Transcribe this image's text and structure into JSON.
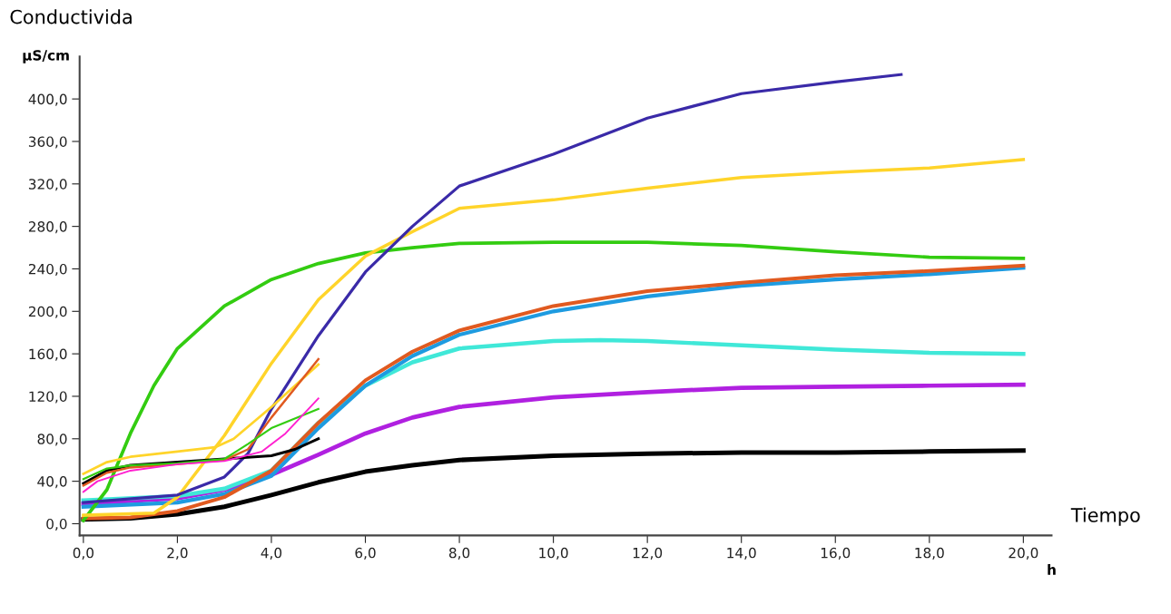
{
  "chart_data": {
    "type": "line",
    "title": "Conductivida",
    "xlabel": "Tiempo",
    "annotations": [
      "µS/cm",
      "h"
    ],
    "xlim": [
      -0.08,
      20.6
    ],
    "ylim": [
      -11,
      440
    ],
    "xticks": [
      {
        "value": 0,
        "label": "0,0"
      },
      {
        "value": 2,
        "label": "2,0"
      },
      {
        "value": 4,
        "label": "4,0"
      },
      {
        "value": 6,
        "label": "6,0"
      },
      {
        "value": 8,
        "label": "8,0"
      },
      {
        "value": 10,
        "label": "10,0"
      },
      {
        "value": 12,
        "label": "12,0"
      },
      {
        "value": 14,
        "label": "14,0"
      },
      {
        "value": 16,
        "label": "16,0"
      },
      {
        "value": 18,
        "label": "18,0"
      },
      {
        "value": 20,
        "label": "20,0"
      }
    ],
    "yticks": [
      {
        "value": 0,
        "label": "0,0"
      },
      {
        "value": 40,
        "label": "40,0"
      },
      {
        "value": 80,
        "label": "80,0"
      },
      {
        "value": 120,
        "label": "120,0"
      },
      {
        "value": 160,
        "label": "160,0"
      },
      {
        "value": 200,
        "label": "200,0"
      },
      {
        "value": 240,
        "label": "240,0"
      },
      {
        "value": 280,
        "label": "280,0"
      },
      {
        "value": 320,
        "label": "320,0"
      },
      {
        "value": 360,
        "label": "360,0"
      },
      {
        "value": 400,
        "label": "400,0"
      }
    ],
    "grid": false,
    "legend": false,
    "marker": "none",
    "line_style": "solid",
    "series": [
      {
        "color": "#000000",
        "x": [
          0,
          1,
          2,
          3,
          4,
          5,
          6,
          7,
          8,
          10,
          12,
          14,
          16,
          18,
          20
        ],
        "values": [
          4,
          5,
          9,
          16,
          27,
          39,
          49,
          55,
          60,
          64,
          66,
          67,
          67,
          68,
          69
        ]
      },
      {
        "color": "#b020e0",
        "x": [
          0,
          2,
          3,
          4,
          5,
          6,
          7,
          8,
          10,
          12,
          14,
          16,
          18,
          20
        ],
        "values": [
          19,
          24,
          32,
          46,
          65,
          85,
          100,
          110,
          119,
          124,
          128,
          129,
          130,
          131
        ]
      },
      {
        "color": "#40e8d8",
        "x": [
          0,
          2,
          3,
          4,
          5,
          6,
          7,
          8,
          10,
          11,
          12,
          14,
          16,
          18,
          20
        ],
        "values": [
          22,
          26,
          33,
          50,
          95,
          130,
          152,
          165,
          172,
          173,
          172,
          168,
          164,
          161,
          160
        ]
      },
      {
        "color": "#1e9be0",
        "x": [
          0,
          2,
          3,
          4,
          5,
          6,
          7,
          8,
          10,
          12,
          14,
          16,
          18,
          20
        ],
        "values": [
          16,
          20,
          28,
          45,
          90,
          130,
          158,
          178,
          200,
          214,
          224,
          230,
          235,
          241
        ]
      },
      {
        "color": "#e05a20",
        "x": [
          0,
          1,
          2,
          3,
          4,
          5,
          6,
          7,
          8,
          10,
          12,
          14,
          16,
          18,
          20
        ],
        "values": [
          5,
          6,
          12,
          25,
          50,
          95,
          135,
          162,
          182,
          205,
          219,
          227,
          234,
          238,
          243
        ]
      },
      {
        "color": "#33cc11",
        "x": [
          0,
          0.5,
          1,
          1.5,
          2,
          3,
          4,
          5,
          6,
          7,
          8,
          10,
          12,
          14,
          16,
          18,
          20
        ],
        "values": [
          3,
          32,
          85,
          130,
          165,
          205,
          230,
          245,
          255,
          260,
          264,
          265,
          265,
          262,
          256,
          251,
          250
        ]
      },
      {
        "color": "#ffd42a",
        "x": [
          0,
          1.5,
          2,
          3,
          4,
          5,
          6,
          7,
          8,
          10,
          12,
          14,
          16,
          18,
          20
        ],
        "values": [
          8,
          10,
          25,
          83,
          151,
          211,
          252,
          275,
          297,
          305,
          316,
          326,
          331,
          335,
          343
        ]
      },
      {
        "color": "#3a2aa8",
        "x": [
          0,
          2,
          3,
          3.5,
          4,
          5,
          6,
          7,
          8,
          10,
          12,
          14,
          16,
          17.4
        ],
        "values": [
          20,
          27,
          44,
          66,
          108,
          177,
          237,
          280,
          318,
          348,
          382,
          405,
          416,
          423
        ]
      },
      {
        "color": "#000000",
        "x": [
          0,
          0.5,
          1,
          2,
          3,
          4,
          4.5,
          5
        ],
        "values": [
          38,
          50,
          55,
          58,
          61,
          64,
          70,
          80
        ]
      },
      {
        "color": "#ffd42a",
        "x": [
          0,
          0.5,
          1,
          2,
          2.8,
          3.2,
          4,
          5
        ],
        "values": [
          47,
          58,
          63,
          68,
          72,
          80,
          110,
          150
        ]
      },
      {
        "color": "#e05a20",
        "x": [
          0,
          0.5,
          1,
          2,
          3,
          3.5,
          4,
          5
        ],
        "values": [
          36,
          48,
          53,
          56,
          60,
          70,
          100,
          155
        ]
      },
      {
        "color": "#33cc11",
        "x": [
          0,
          0.5,
          1,
          2,
          3,
          3.5,
          4,
          5
        ],
        "values": [
          42,
          52,
          55,
          57,
          61,
          75,
          90,
          108
        ]
      },
      {
        "color": "#ff20d0",
        "x": [
          0,
          0.3,
          1,
          2,
          3,
          3.8,
          4.3,
          5
        ],
        "values": [
          30,
          40,
          50,
          56,
          59,
          68,
          85,
          118
        ]
      }
    ]
  }
}
